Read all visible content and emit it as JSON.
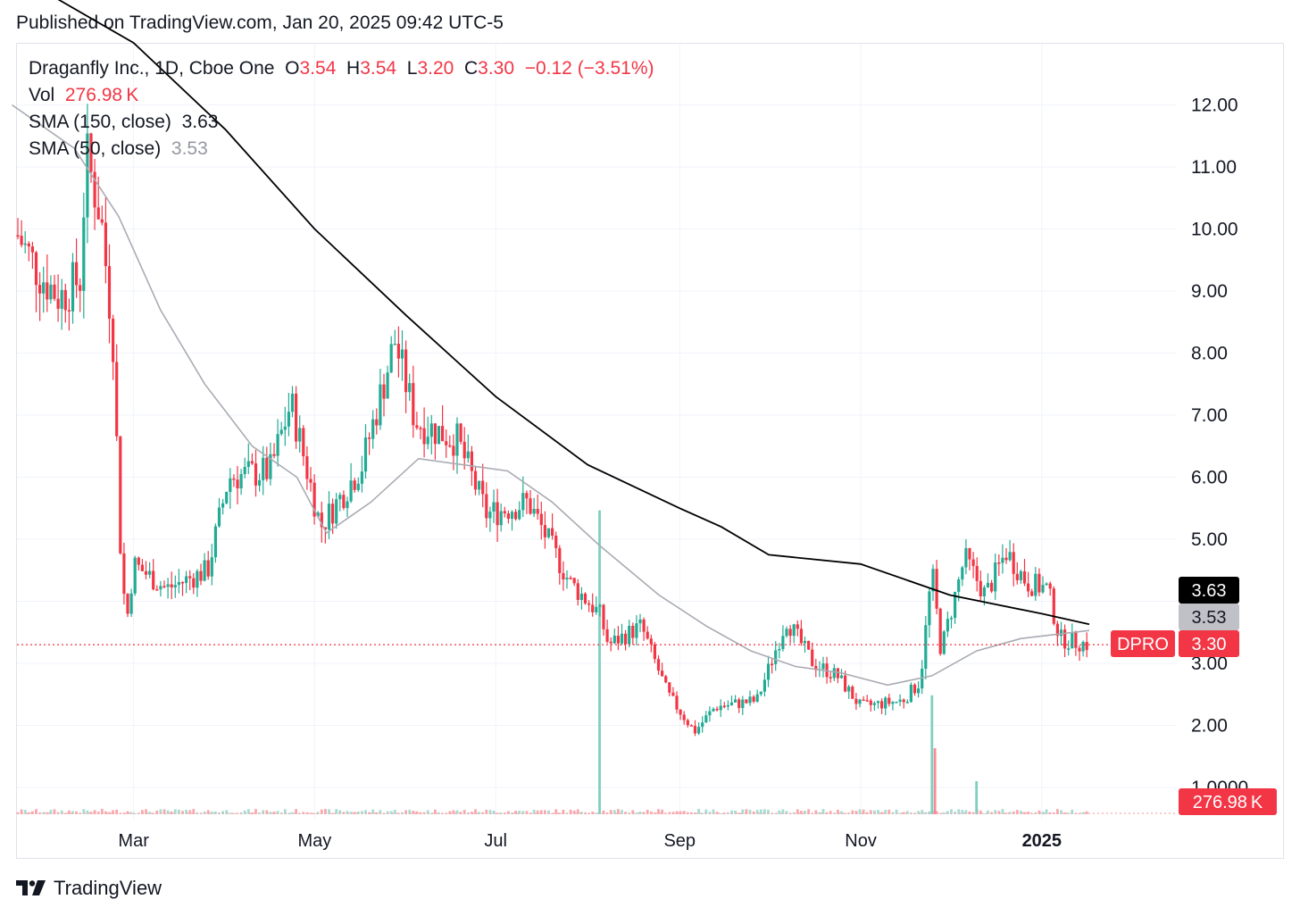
{
  "header": {
    "published": "Published on TradingView.com, Jan 20, 2025 09:42 UTC-5"
  },
  "legend": {
    "symbol": "Draganfly Inc., 1D, Cboe One",
    "o_label": "O",
    "o": "3.54",
    "h_label": "H",
    "h": "3.54",
    "l_label": "L",
    "l": "3.20",
    "c_label": "C",
    "c": "3.30",
    "change": "−0.12 (−3.51%)",
    "vol_label": "Vol",
    "vol": "276.98 K",
    "sma150_label": "SMA (150, close)",
    "sma150": "3.63",
    "sma50_label": "SMA (50, close)",
    "sma50": "3.53"
  },
  "badges": {
    "sma150": "3.63",
    "sma50": "3.53",
    "ticker": "DPRO",
    "last": "3.30",
    "volume": "276.98 K"
  },
  "footer": {
    "brand": "TradingView"
  },
  "colors": {
    "up": "#22ab94",
    "down": "#f23645",
    "sma150": "#000000",
    "sma50": "#a9abb3",
    "grid": "#f0f3fa"
  },
  "chart_data": {
    "type": "candlestick",
    "title": "Draganfly Inc., 1D, Cboe One",
    "x_ticks": [
      "Mar",
      "May",
      "Jul",
      "Sep",
      "Nov",
      "2025"
    ],
    "y_ticks": [
      "12.00",
      "11.00",
      "10.00",
      "9.00",
      "8.00",
      "7.00",
      "6.00",
      "5.00",
      "3.00",
      "2.00",
      "1.0000"
    ],
    "ylim": [
      0.5,
      12.5
    ],
    "last_close": 3.3,
    "grid": true,
    "anchors": [
      {
        "date": "2024-01-22",
        "price": 9.9
      },
      {
        "date": "2024-01-29",
        "price": 9.3
      },
      {
        "date": "2024-02-05",
        "price": 8.9
      },
      {
        "date": "2024-02-12",
        "price": 9.2
      },
      {
        "date": "2024-02-14",
        "price": 11.2
      },
      {
        "date": "2024-02-19",
        "price": 10.2
      },
      {
        "date": "2024-02-23",
        "price": 8.3
      },
      {
        "date": "2024-02-26",
        "price": 4.3
      },
      {
        "date": "2024-02-28",
        "price": 3.8
      },
      {
        "date": "2024-03-01",
        "price": 4.6
      },
      {
        "date": "2024-03-12",
        "price": 4.2
      },
      {
        "date": "2024-03-26",
        "price": 4.5
      },
      {
        "date": "2024-04-02",
        "price": 6.0
      },
      {
        "date": "2024-04-16",
        "price": 6.1
      },
      {
        "date": "2024-04-23",
        "price": 7.2
      },
      {
        "date": "2024-05-03",
        "price": 5.2
      },
      {
        "date": "2024-05-17",
        "price": 6.2
      },
      {
        "date": "2024-05-28",
        "price": 8.2
      },
      {
        "date": "2024-06-04",
        "price": 6.9
      },
      {
        "date": "2024-06-18",
        "price": 6.6
      },
      {
        "date": "2024-06-28",
        "price": 5.4
      },
      {
        "date": "2024-07-12",
        "price": 5.6
      },
      {
        "date": "2024-07-26",
        "price": 4.3
      },
      {
        "date": "2024-08-05",
        "price": 3.8
      },
      {
        "date": "2024-08-08",
        "price": 3.3
      },
      {
        "date": "2024-08-19",
        "price": 3.6
      },
      {
        "date": "2024-08-28",
        "price": 2.5
      },
      {
        "date": "2024-09-06",
        "price": 1.9
      },
      {
        "date": "2024-09-13",
        "price": 2.3
      },
      {
        "date": "2024-09-27",
        "price": 2.4
      },
      {
        "date": "2024-10-07",
        "price": 3.7
      },
      {
        "date": "2024-10-16",
        "price": 3.0
      },
      {
        "date": "2024-10-24",
        "price": 2.8
      },
      {
        "date": "2024-11-01",
        "price": 2.3
      },
      {
        "date": "2024-11-15",
        "price": 2.4
      },
      {
        "date": "2024-11-21",
        "price": 2.7
      },
      {
        "date": "2024-11-25",
        "price": 4.5
      },
      {
        "date": "2024-11-28",
        "price": 3.2
      },
      {
        "date": "2024-12-06",
        "price": 4.7
      },
      {
        "date": "2024-12-13",
        "price": 4.1
      },
      {
        "date": "2024-12-20",
        "price": 4.8
      },
      {
        "date": "2024-12-27",
        "price": 4.3
      },
      {
        "date": "2025-01-03",
        "price": 4.2
      },
      {
        "date": "2025-01-07",
        "price": 3.4
      },
      {
        "date": "2025-01-17",
        "price": 3.3
      }
    ],
    "sma150": [
      {
        "date": "2024-02-01",
        "price": 13.8
      },
      {
        "date": "2024-03-01",
        "price": 13.0
      },
      {
        "date": "2024-04-01",
        "price": 11.6
      },
      {
        "date": "2024-05-01",
        "price": 10.0
      },
      {
        "date": "2024-06-01",
        "price": 8.6
      },
      {
        "date": "2024-07-01",
        "price": 7.3
      },
      {
        "date": "2024-08-01",
        "price": 6.2
      },
      {
        "date": "2024-09-01",
        "price": 5.5
      },
      {
        "date": "2024-09-15",
        "price": 5.2
      },
      {
        "date": "2024-10-01",
        "price": 4.75
      },
      {
        "date": "2024-11-01",
        "price": 4.6
      },
      {
        "date": "2024-12-01",
        "price": 4.1
      },
      {
        "date": "2025-01-01",
        "price": 3.8
      },
      {
        "date": "2025-01-17",
        "price": 3.63
      }
    ],
    "sma50": [
      {
        "date": "2024-01-20",
        "price": 12.0
      },
      {
        "date": "2024-02-10",
        "price": 11.3
      },
      {
        "date": "2024-02-25",
        "price": 10.2
      },
      {
        "date": "2024-03-10",
        "price": 8.7
      },
      {
        "date": "2024-03-25",
        "price": 7.5
      },
      {
        "date": "2024-04-10",
        "price": 6.5
      },
      {
        "date": "2024-04-25",
        "price": 6.0
      },
      {
        "date": "2024-05-05",
        "price": 5.1
      },
      {
        "date": "2024-05-20",
        "price": 5.6
      },
      {
        "date": "2024-06-05",
        "price": 6.3
      },
      {
        "date": "2024-06-20",
        "price": 6.2
      },
      {
        "date": "2024-07-05",
        "price": 6.1
      },
      {
        "date": "2024-07-20",
        "price": 5.6
      },
      {
        "date": "2024-08-05",
        "price": 4.9
      },
      {
        "date": "2024-08-25",
        "price": 4.1
      },
      {
        "date": "2024-09-10",
        "price": 3.6
      },
      {
        "date": "2024-09-25",
        "price": 3.2
      },
      {
        "date": "2024-10-10",
        "price": 2.95
      },
      {
        "date": "2024-10-25",
        "price": 2.85
      },
      {
        "date": "2024-11-10",
        "price": 2.65
      },
      {
        "date": "2024-11-25",
        "price": 2.8
      },
      {
        "date": "2024-12-10",
        "price": 3.2
      },
      {
        "date": "2024-12-25",
        "price": 3.4
      },
      {
        "date": "2025-01-17",
        "price": 3.53
      }
    ],
    "volume_spikes": [
      {
        "date": "2024-08-05",
        "value": 0.92,
        "dir": "up"
      },
      {
        "date": "2024-11-25",
        "value": 0.36,
        "dir": "up"
      },
      {
        "date": "2024-11-26",
        "value": 0.2,
        "dir": "down"
      },
      {
        "date": "2024-12-10",
        "value": 0.1,
        "dir": "up"
      }
    ],
    "last_volume": "276.98 K"
  }
}
